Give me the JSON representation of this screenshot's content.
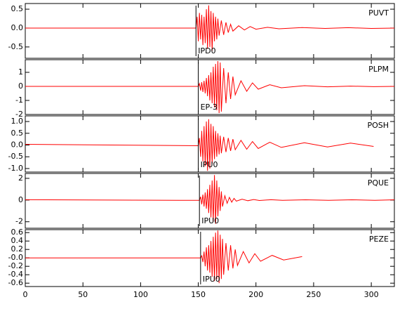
{
  "chart_data": [
    {
      "type": "line",
      "station": "PUVT",
      "pick": {
        "label": "IPD0",
        "x": 148
      },
      "color": "#ff0000",
      "xlim": [
        0,
        320
      ],
      "xticks": [
        0,
        50,
        100,
        150,
        200,
        250,
        300
      ],
      "ylim": [
        -0.8,
        0.65
      ],
      "yticks": [
        {
          "value": 0.5,
          "label": "0.5"
        },
        {
          "value": 0,
          "label": "0.0"
        },
        {
          "value": -0.5,
          "label": "-0.5"
        }
      ],
      "x": [
        0,
        148,
        149,
        150,
        151,
        152,
        153,
        154,
        155,
        156,
        157,
        158,
        159,
        160,
        161,
        162,
        163,
        164,
        165,
        166,
        167,
        168,
        170,
        172,
        174,
        176,
        178,
        180,
        185,
        190,
        195,
        200,
        210,
        220,
        240,
        260,
        280,
        300,
        320
      ],
      "values": [
        0,
        0,
        0.3,
        -0.35,
        0.4,
        -0.3,
        0.35,
        -0.45,
        0.3,
        -0.4,
        0.5,
        -0.55,
        0.6,
        -0.5,
        0.45,
        -0.6,
        0.4,
        -0.35,
        0.3,
        -0.3,
        0.25,
        -0.2,
        0.2,
        -0.18,
        0.15,
        -0.12,
        0.1,
        -0.08,
        0.06,
        -0.05,
        0.04,
        -0.03,
        0.02,
        -0.02,
        0.015,
        -0.01,
        0.01,
        -0.01,
        0
      ]
    },
    {
      "type": "line",
      "station": "PLPM",
      "pick": {
        "label": "EP-3",
        "x": 150
      },
      "color": "#ff0000",
      "xlim": [
        0,
        320
      ],
      "xticks": [
        0,
        50,
        100,
        150,
        200,
        250,
        300
      ],
      "ylim": [
        -2,
        1.9
      ],
      "yticks": [
        1,
        0,
        -1,
        -2
      ],
      "x": [
        0,
        150,
        151,
        152,
        153,
        154,
        155,
        156,
        157,
        158,
        159,
        160,
        161,
        162,
        163,
        164,
        165,
        166,
        167,
        168,
        169,
        170,
        172,
        174,
        176,
        178,
        180,
        182,
        187,
        192,
        197,
        202,
        212,
        222,
        242,
        262,
        282,
        302,
        320
      ],
      "values": [
        0,
        0,
        0.2,
        -0.3,
        0.3,
        -0.4,
        0.4,
        -0.5,
        0.6,
        -0.7,
        0.8,
        -1.0,
        1.0,
        -1.2,
        1.4,
        -1.5,
        1.6,
        -1.7,
        1.8,
        -1.9,
        1.7,
        -1.8,
        1.3,
        -1.2,
        1.0,
        -0.9,
        0.7,
        -0.6,
        0.4,
        -0.35,
        0.25,
        -0.2,
        0.12,
        -0.1,
        0.05,
        -0.03,
        0.02,
        -0.02,
        0
      ]
    },
    {
      "type": "line",
      "station": "POSH",
      "pick": {
        "label": "IPU0",
        "x": 150
      },
      "color": "#ff0000",
      "xlim": [
        0,
        320
      ],
      "xticks": [
        0,
        50,
        100,
        150,
        200,
        250,
        300
      ],
      "ylim": [
        -1.15,
        1.24
      ],
      "yticks": [
        {
          "value": 1,
          "label": "1.0"
        },
        0.5,
        {
          "value": 0,
          "label": "0.0"
        },
        -0.5,
        {
          "value": -1,
          "label": "-1.0"
        }
      ],
      "x": [
        0,
        150,
        151,
        152,
        153,
        154,
        155,
        156,
        157,
        158,
        159,
        160,
        161,
        162,
        163,
        164,
        165,
        166,
        167,
        168,
        169,
        170,
        172,
        174,
        176,
        178,
        180,
        182,
        187,
        192,
        197,
        202,
        212,
        222,
        242,
        262,
        282,
        302,
        320
      ],
      "values": [
        0.03,
        -0.03,
        0.3,
        -0.5,
        0.6,
        -0.7,
        0.8,
        -0.9,
        1.0,
        -1.1,
        1.1,
        -1.0,
        0.9,
        -0.8,
        0.8,
        -0.6,
        0.6,
        -0.5,
        0.5,
        -0.4,
        0.4,
        -0.35,
        0.35,
        -0.3,
        0.3,
        -0.25,
        0.25,
        -0.2,
        0.2,
        -0.18,
        0.15,
        -0.15,
        0.12,
        -0.1,
        0.1,
        -0.08,
        0.08,
        -0.06,
        null
      ]
    },
    {
      "type": "line",
      "station": "PQUE",
      "pick": {
        "label": "IPU0",
        "x": 151
      },
      "color": "#ff0000",
      "xlim": [
        0,
        320
      ],
      "xticks": [
        0,
        50,
        100,
        150,
        200,
        250,
        300
      ],
      "ylim": [
        -2.6,
        2.45
      ],
      "yticks": [
        2,
        0,
        -2
      ],
      "x": [
        0,
        151,
        152,
        153,
        154,
        155,
        156,
        157,
        158,
        159,
        160,
        161,
        162,
        163,
        164,
        165,
        166,
        167,
        168,
        169,
        170,
        171,
        173,
        175,
        177,
        179,
        181,
        183,
        188,
        193,
        198,
        203,
        213,
        223,
        243,
        263,
        283,
        303,
        320
      ],
      "values": [
        0.03,
        -0.03,
        0.3,
        -0.4,
        0.5,
        -0.6,
        0.7,
        -0.8,
        1.0,
        -1.2,
        1.4,
        -1.6,
        1.8,
        -2.0,
        2.3,
        -2.2,
        1.8,
        -1.5,
        1.2,
        -1.0,
        0.8,
        -0.6,
        0.4,
        -0.3,
        0.25,
        -0.2,
        0.15,
        -0.1,
        0.08,
        -0.06,
        0.05,
        -0.04,
        0.03,
        -0.03,
        0.02,
        -0.02,
        0.02,
        -0.02,
        0.02
      ]
    },
    {
      "type": "line",
      "station": "PEZE",
      "pick": {
        "label": "IPU0",
        "x": 152
      },
      "color": "#ff0000",
      "xlim": [
        0,
        320
      ],
      "xticks": [
        0,
        50,
        100,
        150,
        200,
        250,
        300
      ],
      "ylim": [
        -0.68,
        0.67
      ],
      "yticks": [
        0.6,
        0.4,
        0.2,
        {
          "value": 0,
          "label": "-0.0"
        },
        -0.2,
        -0.4,
        -0.6
      ],
      "x": [
        0,
        152,
        153,
        154,
        155,
        156,
        157,
        158,
        159,
        160,
        161,
        162,
        163,
        164,
        165,
        166,
        167,
        168,
        169,
        170,
        171,
        172,
        174,
        176,
        178,
        180,
        182,
        184,
        189,
        194,
        199,
        204,
        214,
        224,
        240,
        260,
        280,
        300,
        320
      ],
      "values": [
        0,
        0,
        0.05,
        -0.1,
        0.15,
        -0.2,
        0.25,
        -0.3,
        0.3,
        -0.35,
        0.4,
        -0.45,
        0.5,
        -0.55,
        0.6,
        -0.5,
        0.65,
        -0.6,
        0.55,
        -0.5,
        0.45,
        -0.4,
        0.35,
        -0.3,
        0.3,
        -0.25,
        0.2,
        -0.18,
        0.15,
        -0.12,
        0.1,
        -0.08,
        0.06,
        -0.05,
        0.03,
        null,
        null,
        null,
        null
      ]
    }
  ]
}
